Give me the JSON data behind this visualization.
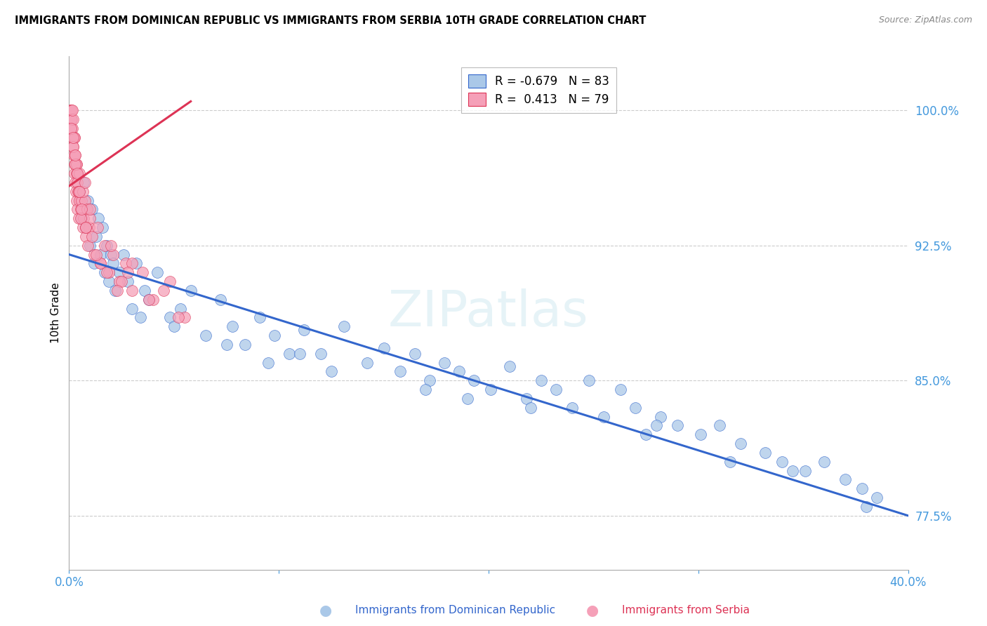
{
  "title": "IMMIGRANTS FROM DOMINICAN REPUBLIC VS IMMIGRANTS FROM SERBIA 10TH GRADE CORRELATION CHART",
  "source": "Source: ZipAtlas.com",
  "ylabel": "10th Grade",
  "yticks": [
    77.5,
    85.0,
    92.5,
    100.0
  ],
  "ytick_labels": [
    "77.5%",
    "85.0%",
    "92.5%",
    "100.0%"
  ],
  "xmin": 0.0,
  "xmax": 40.0,
  "ymin": 74.5,
  "ymax": 103.0,
  "blue_R": -0.679,
  "blue_N": 83,
  "pink_R": 0.413,
  "pink_N": 79,
  "blue_color": "#aac8e8",
  "pink_color": "#f5a0b8",
  "blue_line_color": "#3366cc",
  "pink_line_color": "#dd3355",
  "tick_color": "#4499dd",
  "watermark": "ZIPatlas",
  "legend_blue_label": "Immigrants from Dominican Republic",
  "legend_pink_label": "Immigrants from Serbia",
  "blue_scatter_x": [
    0.5,
    0.6,
    0.7,
    0.8,
    0.9,
    1.0,
    1.1,
    1.2,
    1.3,
    1.4,
    1.5,
    1.6,
    1.7,
    1.8,
    1.9,
    2.0,
    2.1,
    2.2,
    2.4,
    2.6,
    2.8,
    3.0,
    3.2,
    3.4,
    3.6,
    3.8,
    4.2,
    4.8,
    5.3,
    5.8,
    6.5,
    7.2,
    7.8,
    8.4,
    9.1,
    9.8,
    10.5,
    11.2,
    12.0,
    13.1,
    14.2,
    15.0,
    15.8,
    16.5,
    17.2,
    17.9,
    18.6,
    19.3,
    20.1,
    21.0,
    21.8,
    22.5,
    23.2,
    24.0,
    24.8,
    25.5,
    26.3,
    27.0,
    28.2,
    29.0,
    30.1,
    31.0,
    32.0,
    33.2,
    34.0,
    35.1,
    36.0,
    37.0,
    37.8,
    38.5,
    7.5,
    9.5,
    12.5,
    17.0,
    22.0,
    27.5,
    31.5,
    34.5,
    38.0,
    5.0,
    11.0,
    19.0,
    28.0
  ],
  "blue_scatter_y": [
    95.5,
    94.0,
    96.0,
    93.5,
    95.0,
    92.5,
    94.5,
    91.5,
    93.0,
    94.0,
    92.0,
    93.5,
    91.0,
    92.5,
    90.5,
    92.0,
    91.5,
    90.0,
    91.0,
    92.0,
    90.5,
    89.0,
    91.5,
    88.5,
    90.0,
    89.5,
    91.0,
    88.5,
    89.0,
    90.0,
    87.5,
    89.5,
    88.0,
    87.0,
    88.5,
    87.5,
    86.5,
    87.8,
    86.5,
    88.0,
    86.0,
    86.8,
    85.5,
    86.5,
    85.0,
    86.0,
    85.5,
    85.0,
    84.5,
    85.8,
    84.0,
    85.0,
    84.5,
    83.5,
    85.0,
    83.0,
    84.5,
    83.5,
    83.0,
    82.5,
    82.0,
    82.5,
    81.5,
    81.0,
    80.5,
    80.0,
    80.5,
    79.5,
    79.0,
    78.5,
    87.0,
    86.0,
    85.5,
    84.5,
    83.5,
    82.0,
    80.5,
    80.0,
    78.0,
    88.0,
    86.5,
    84.0,
    82.5
  ],
  "pink_scatter_x": [
    0.05,
    0.07,
    0.08,
    0.1,
    0.12,
    0.13,
    0.15,
    0.17,
    0.19,
    0.2,
    0.22,
    0.24,
    0.25,
    0.27,
    0.29,
    0.3,
    0.32,
    0.34,
    0.35,
    0.37,
    0.39,
    0.4,
    0.42,
    0.45,
    0.48,
    0.5,
    0.55,
    0.6,
    0.65,
    0.7,
    0.75,
    0.8,
    0.85,
    0.9,
    0.95,
    1.0,
    1.1,
    1.2,
    1.35,
    1.5,
    1.7,
    1.9,
    2.1,
    2.4,
    2.7,
    3.0,
    3.5,
    4.0,
    4.8,
    5.5,
    0.15,
    0.25,
    0.35,
    0.45,
    0.55,
    0.65,
    0.75,
    0.1,
    0.2,
    0.3,
    0.5,
    0.8,
    1.0,
    1.5,
    2.0,
    2.5,
    3.0,
    3.8,
    4.5,
    5.2,
    0.18,
    0.28,
    0.38,
    0.58,
    0.78,
    1.3,
    1.8,
    2.3,
    2.8
  ],
  "pink_scatter_y": [
    100.0,
    99.5,
    100.0,
    99.0,
    100.0,
    99.5,
    98.5,
    99.0,
    98.0,
    99.5,
    97.5,
    97.0,
    98.5,
    96.5,
    96.0,
    97.5,
    95.5,
    97.0,
    95.0,
    96.5,
    94.5,
    96.0,
    95.5,
    94.0,
    95.0,
    96.5,
    94.5,
    95.0,
    93.5,
    94.0,
    95.0,
    93.0,
    94.5,
    92.5,
    93.5,
    94.0,
    93.0,
    92.0,
    93.5,
    91.5,
    92.5,
    91.0,
    92.0,
    90.5,
    91.5,
    90.0,
    91.0,
    89.5,
    90.5,
    88.5,
    100.0,
    98.5,
    97.0,
    95.5,
    94.0,
    95.5,
    96.0,
    99.0,
    98.0,
    97.0,
    95.5,
    93.5,
    94.5,
    91.5,
    92.5,
    90.5,
    91.5,
    89.5,
    90.0,
    88.5,
    98.5,
    97.5,
    96.5,
    94.5,
    93.5,
    92.0,
    91.0,
    90.0,
    91.0
  ],
  "blue_trendline_x": [
    0.0,
    40.0
  ],
  "blue_trendline_y": [
    92.0,
    77.5
  ],
  "pink_trendline_x": [
    0.0,
    5.8
  ],
  "pink_trendline_y": [
    95.8,
    100.5
  ]
}
